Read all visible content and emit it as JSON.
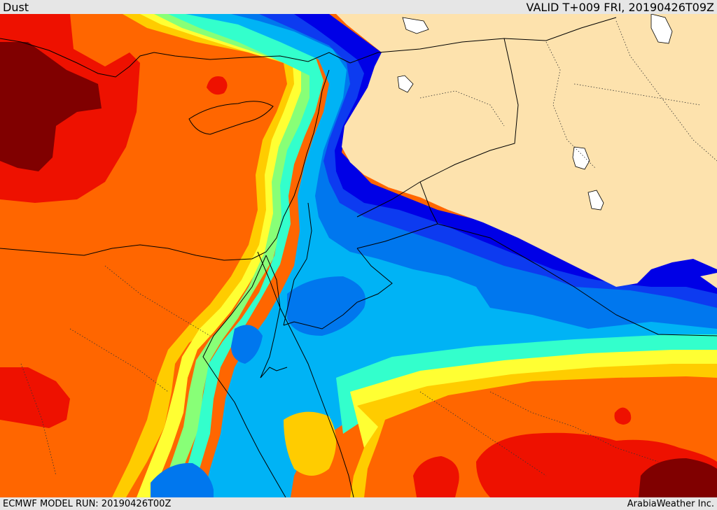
{
  "header": {
    "product": "Dust",
    "valid_time": "VALID T+009 FRI, 20190426T09Z"
  },
  "footer": {
    "model_run": "ECMWF MODEL RUN: 20190426T00Z",
    "credit": "ArabiaWeather Inc."
  },
  "map": {
    "land_color": "#fde2ad",
    "water_color": "#ffffff",
    "border_color": "#000000",
    "dust_palette": {
      "level_1": "#0000e6",
      "level_2": "#0d3bf0",
      "level_3": "#0077ee",
      "level_4": "#00b3f5",
      "level_5": "#33ffcc",
      "level_6": "#88ff77",
      "level_7": "#ffff33",
      "level_8": "#ffcc00",
      "level_9": "#ff6600",
      "level_10": "#ee1100",
      "level_11": "#800000"
    }
  }
}
